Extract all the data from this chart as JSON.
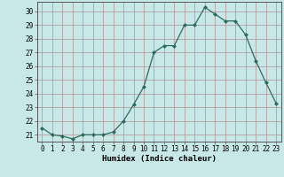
{
  "x": [
    0,
    1,
    2,
    3,
    4,
    5,
    6,
    7,
    8,
    9,
    10,
    11,
    12,
    13,
    14,
    15,
    16,
    17,
    18,
    19,
    20,
    21,
    22,
    23
  ],
  "y": [
    21.5,
    21.0,
    20.9,
    20.7,
    21.0,
    21.0,
    21.0,
    21.2,
    22.0,
    23.2,
    24.5,
    27.0,
    27.5,
    27.5,
    29.0,
    29.0,
    30.3,
    29.8,
    29.3,
    29.3,
    28.3,
    26.4,
    24.8,
    23.3
  ],
  "line_color": "#2d6b5e",
  "marker": "D",
  "marker_size": 2.0,
  "bg_color": "#c8e8e8",
  "grid_color": "#b09090",
  "xlabel": "Humidex (Indice chaleur)",
  "ylim": [
    20.5,
    30.7
  ],
  "xlim": [
    -0.5,
    23.5
  ],
  "yticks": [
    21,
    22,
    23,
    24,
    25,
    26,
    27,
    28,
    29,
    30
  ],
  "xticks": [
    0,
    1,
    2,
    3,
    4,
    5,
    6,
    7,
    8,
    9,
    10,
    11,
    12,
    13,
    14,
    15,
    16,
    17,
    18,
    19,
    20,
    21,
    22,
    23
  ],
  "tick_fontsize": 5.5,
  "label_fontsize": 6.5
}
